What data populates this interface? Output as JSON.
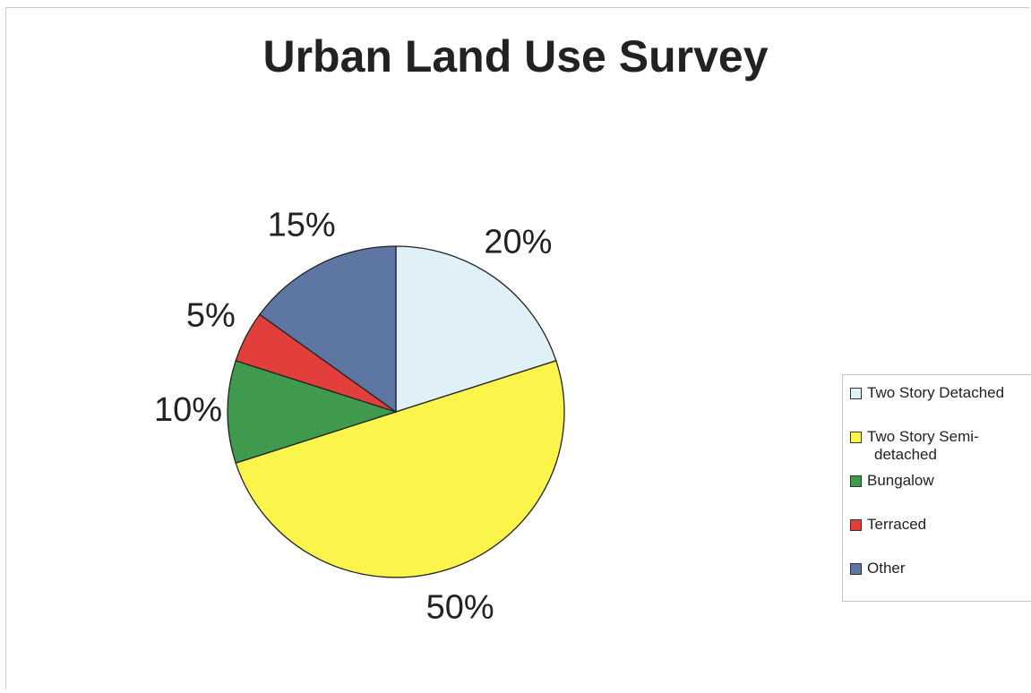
{
  "chart_data": {
    "type": "pie",
    "title": "Urban Land Use Survey",
    "slices": [
      {
        "label": "Two Story Detached",
        "value": 20,
        "display": "20%",
        "color": "#dff0f7"
      },
      {
        "label": "Two Story Semi-detached",
        "value": 50,
        "display": "50%",
        "color": "#fbf44a"
      },
      {
        "label": "Bungalow",
        "value": 10,
        "display": "10%",
        "color": "#3f9a4d"
      },
      {
        "label": "Terraced",
        "value": 5,
        "display": "5%",
        "color": "#e23e3b"
      },
      {
        "label": "Other",
        "value": 15,
        "display": "15%",
        "color": "#5d77a2"
      }
    ],
    "legend": {
      "placement": "right",
      "entries": [
        {
          "lines": [
            "Two Story Detached"
          ]
        },
        {
          "lines": [
            "Two Story Semi-",
            "detached"
          ]
        },
        {
          "lines": [
            "Bungalow"
          ]
        },
        {
          "lines": [
            "Terraced"
          ]
        },
        {
          "lines": [
            "Other"
          ]
        }
      ]
    }
  }
}
